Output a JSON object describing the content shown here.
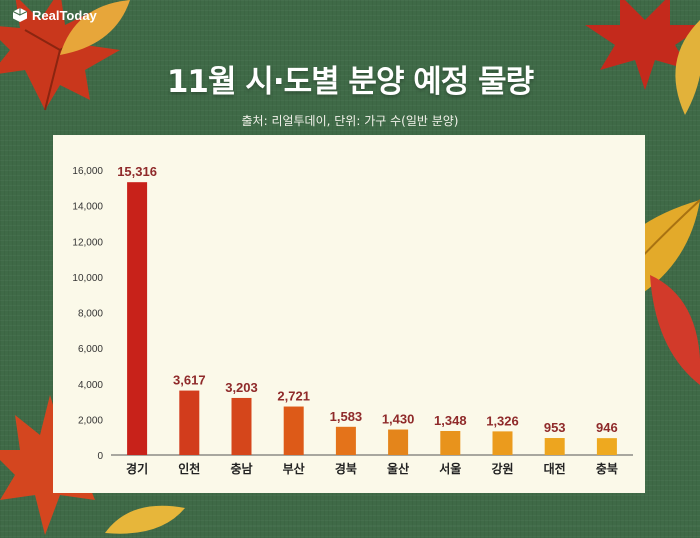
{
  "brand": {
    "name": "RealToday"
  },
  "chart_data": {
    "type": "bar",
    "title": "11월 시·도별 분양 예정 물량",
    "subtitle": "출처: 리얼투데이, 단위: 가구 수(일반 분양)",
    "categories": [
      "경기",
      "인천",
      "충남",
      "부산",
      "경북",
      "울산",
      "서울",
      "강원",
      "대전",
      "충북"
    ],
    "values": [
      15316,
      3617,
      3203,
      2721,
      1583,
      1430,
      1348,
      1326,
      953,
      946
    ],
    "value_labels": [
      "15,316",
      "3,617",
      "3,203",
      "2,721",
      "1,583",
      "1,430",
      "1,348",
      "1,326",
      "953",
      "946"
    ],
    "ylim": [
      0,
      16000
    ],
    "yticks": [
      0,
      2000,
      4000,
      6000,
      8000,
      10000,
      12000,
      14000,
      16000
    ],
    "ytick_labels": [
      "0",
      "2,000",
      "4,000",
      "6,000",
      "8,000",
      "10,000",
      "12,000",
      "14,000",
      "16,000"
    ],
    "xlabel": "",
    "ylabel": "",
    "grid": false,
    "legend": false,
    "colors": {
      "bars": [
        "#c8221a",
        "#d23c1c",
        "#d5461b",
        "#dd5a18",
        "#e4731a",
        "#e4851b",
        "#e8931c",
        "#eb9b1d",
        "#eda51f",
        "#eea91f"
      ],
      "value_label": "#8f2a2a",
      "axis": "#555555",
      "panel": "#fbf9e9",
      "background": "#3f6a47"
    }
  }
}
